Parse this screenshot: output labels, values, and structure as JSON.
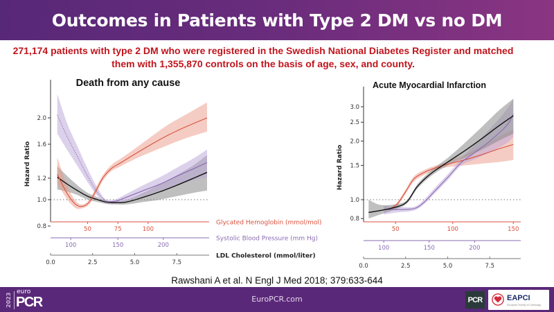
{
  "header": {
    "title": "Outcomes in Patients with Type 2 DM vs no DM"
  },
  "subtitle": {
    "line1": "271,174 patients with type 2 DM who were registered in the Swedish National Diabetes Register and matched",
    "line2": "them with 1,355,870 controls on the basis of age, sex, and county."
  },
  "citation": "Rawshani A et al. N Engl J Med 2018; 379:633-644",
  "footer": {
    "site": "EuroPCR.com",
    "logo_year": "2023",
    "logo_euro": "euro",
    "logo_pcr": "PCR",
    "badge_pcr": "PCR",
    "badge_eapci": "EAPCI",
    "badge_eapci_sub": "European Society of Cardiology"
  },
  "colors": {
    "hba1c": "#d9503c",
    "sbp": "#8a6bb0",
    "ldl": "#111111",
    "hba1c_band": "#eb9a88",
    "sbp_band": "#b9a4d8",
    "ldl_band": "#8a8a8a",
    "header_start": "#582878",
    "header_end": "#8a3582",
    "subtitle": "#c0141c",
    "footer": "#5a2878"
  },
  "chart_data": [
    {
      "type": "line",
      "title": "Death from any cause",
      "ylabel": "Hazard Ratio",
      "yscale": "log",
      "ylim": [
        0.78,
        2.45
      ],
      "yticks": [
        0.8,
        1.0,
        1.2,
        1.6,
        2.0
      ],
      "ytick_labels": [
        "0.8",
        "1.0",
        "1.2",
        "1.6",
        "2.0"
      ],
      "reference_line": 1.0,
      "xlim": [
        0.0,
        9.3
      ],
      "x_axes": [
        {
          "name": "Glycated Hemoglobin (mmol/mol)",
          "key": "hba1c",
          "ticks": [
            50,
            75,
            100
          ],
          "tick_ldl_positions": [
            2.2,
            4.0,
            5.8
          ]
        },
        {
          "name": "Systolic Blood Pressure (mm Hg)",
          "key": "sbp",
          "ticks": [
            100,
            150,
            200
          ],
          "tick_ldl_positions": [
            1.2,
            4.0,
            6.7
          ]
        },
        {
          "name": "LDL Cholesterol (mmol/liter)",
          "key": "ldl",
          "ticks": [
            0.0,
            2.5,
            5.0,
            7.5
          ],
          "tick_ldl_positions": [
            0.0,
            2.5,
            5.0,
            7.5
          ]
        }
      ],
      "series": [
        {
          "name": "Glycated Hemoglobin",
          "key": "hba1c",
          "style": "solid",
          "x": [
            0.4,
            1.0,
            1.5,
            1.9,
            2.3,
            2.7,
            3.1,
            3.6,
            4.2,
            5.0,
            6.0,
            7.0,
            8.0,
            9.3
          ],
          "y": [
            1.24,
            1.05,
            0.96,
            0.945,
            0.98,
            1.08,
            1.2,
            1.3,
            1.37,
            1.47,
            1.6,
            1.73,
            1.85,
            2.0
          ],
          "lower": [
            1.15,
            1.0,
            0.93,
            0.93,
            0.96,
            1.05,
            1.17,
            1.27,
            1.33,
            1.41,
            1.5,
            1.59,
            1.68,
            1.78
          ],
          "upper": [
            1.43,
            1.12,
            0.99,
            0.96,
            1.0,
            1.11,
            1.23,
            1.34,
            1.42,
            1.54,
            1.71,
            1.89,
            2.05,
            2.28
          ]
        },
        {
          "name": "Systolic Blood Pressure",
          "key": "sbp",
          "style": "dotted-then-solid",
          "solid_from": 3.3,
          "x": [
            0.4,
            1.0,
            1.6,
            2.2,
            2.8,
            3.3,
            3.8,
            4.5,
            5.5,
            6.5,
            7.5,
            8.5,
            9.3
          ],
          "y": [
            2.05,
            1.7,
            1.44,
            1.22,
            1.06,
            0.985,
            0.985,
            1.02,
            1.08,
            1.14,
            1.22,
            1.3,
            1.37
          ],
          "lower": [
            1.75,
            1.52,
            1.33,
            1.16,
            1.03,
            0.975,
            0.97,
            0.99,
            1.03,
            1.08,
            1.13,
            1.18,
            1.21
          ],
          "upper": [
            2.45,
            1.9,
            1.57,
            1.3,
            1.1,
            1.0,
            1.0,
            1.05,
            1.13,
            1.21,
            1.31,
            1.42,
            1.53
          ]
        },
        {
          "name": "LDL Cholesterol",
          "key": "ldl",
          "style": "solid",
          "x": [
            0.4,
            1.0,
            1.6,
            2.2,
            2.8,
            3.3,
            3.8,
            4.5,
            5.5,
            6.5,
            7.5,
            8.5,
            9.3
          ],
          "y": [
            1.21,
            1.14,
            1.08,
            1.03,
            1.0,
            0.98,
            0.975,
            0.98,
            1.02,
            1.07,
            1.13,
            1.2,
            1.26
          ],
          "lower": [
            1.09,
            1.07,
            1.04,
            1.0,
            0.98,
            0.965,
            0.96,
            0.96,
            0.98,
            1.0,
            1.03,
            1.06,
            1.08
          ],
          "upper": [
            1.33,
            1.22,
            1.13,
            1.06,
            1.02,
            0.995,
            0.99,
            1.0,
            1.06,
            1.14,
            1.23,
            1.34,
            1.46
          ]
        }
      ]
    },
    {
      "type": "line",
      "title": "Acute Myocardial Infarction",
      "ylabel": "Hazard Ratio",
      "yscale": "log",
      "ylim": [
        0.77,
        3.35
      ],
      "yticks": [
        0.8,
        1.0,
        1.5,
        2.0,
        2.5,
        3.0
      ],
      "ytick_labels": [
        "0.8",
        "1.0",
        "1.5",
        "2.0",
        "2.5",
        "3.0"
      ],
      "reference_line": 1.0,
      "xlim": [
        0.0,
        9.3
      ],
      "x_axes": [
        {
          "name": "",
          "key": "hba1c",
          "ticks": [
            50,
            100,
            150
          ],
          "tick_ldl_positions": [
            1.9,
            5.3,
            8.9
          ]
        },
        {
          "name": "",
          "key": "sbp",
          "ticks": [
            100,
            150,
            200
          ],
          "tick_ldl_positions": [
            1.2,
            3.9,
            6.6
          ]
        },
        {
          "name": "",
          "key": "ldl",
          "ticks": [
            0.0,
            2.5,
            5.0,
            7.5
          ],
          "tick_ldl_positions": [
            0.0,
            2.5,
            5.0,
            7.5
          ]
        }
      ],
      "series": [
        {
          "name": "Glycated Hemoglobin",
          "key": "hba1c",
          "style": "solid",
          "x": [
            1.5,
            2.0,
            2.5,
            3.0,
            3.6,
            4.2,
            5.0,
            6.0,
            7.0,
            8.0,
            8.9
          ],
          "y": [
            0.89,
            0.95,
            1.1,
            1.28,
            1.38,
            1.45,
            1.52,
            1.6,
            1.7,
            1.82,
            1.92
          ],
          "lower": [
            0.88,
            0.93,
            1.07,
            1.24,
            1.34,
            1.41,
            1.47,
            1.5,
            1.53,
            1.56,
            1.6
          ],
          "upper": [
            0.9,
            0.97,
            1.13,
            1.32,
            1.42,
            1.49,
            1.57,
            1.7,
            1.87,
            2.1,
            2.3
          ]
        },
        {
          "name": "Systolic Blood Pressure",
          "key": "sbp",
          "style": "solid",
          "x": [
            1.2,
            2.0,
            3.0,
            3.6,
            4.2,
            5.0,
            5.8,
            6.5,
            7.5,
            8.5,
            8.9
          ],
          "y": [
            0.89,
            0.89,
            0.9,
            0.97,
            1.1,
            1.3,
            1.55,
            1.72,
            2.0,
            2.4,
            2.75
          ],
          "lower": [
            0.84,
            0.86,
            0.88,
            0.95,
            1.07,
            1.26,
            1.5,
            1.6,
            1.75,
            1.95,
            2.1
          ],
          "upper": [
            0.93,
            0.92,
            0.92,
            1.0,
            1.14,
            1.35,
            1.62,
            1.88,
            2.3,
            2.9,
            3.3
          ]
        },
        {
          "name": "LDL Cholesterol",
          "key": "ldl",
          "style": "solid",
          "x": [
            0.3,
            1.0,
            2.0,
            2.6,
            3.2,
            4.0,
            5.0,
            6.0,
            7.0,
            8.0,
            8.9
          ],
          "y": [
            0.86,
            0.88,
            0.92,
            0.98,
            1.17,
            1.36,
            1.56,
            1.78,
            2.05,
            2.38,
            2.7
          ],
          "lower": [
            0.8,
            0.84,
            0.9,
            0.96,
            1.14,
            1.32,
            1.5,
            1.64,
            1.8,
            2.0,
            2.18
          ],
          "upper": [
            1.0,
            0.94,
            0.95,
            1.0,
            1.2,
            1.41,
            1.64,
            1.95,
            2.35,
            2.85,
            3.3
          ]
        }
      ]
    }
  ]
}
